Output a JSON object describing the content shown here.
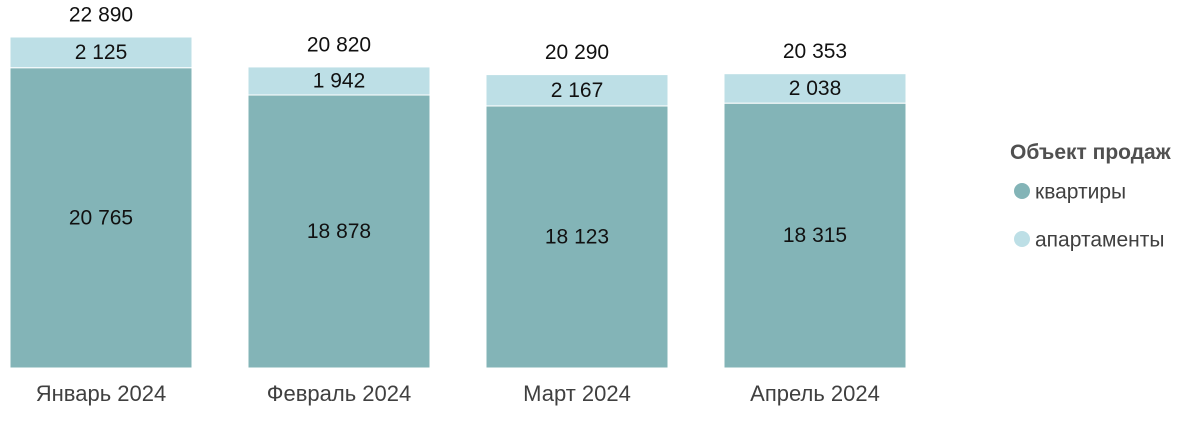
{
  "chart_data": {
    "type": "bar",
    "stacked": true,
    "categories": [
      "Январь 2024",
      "Февраль 2024",
      "Март 2024",
      "Апрель 2024"
    ],
    "series": [
      {
        "name": "квартиры",
        "values": [
          20765,
          18878,
          18123,
          18315
        ],
        "color": "#83B4B7"
      },
      {
        "name": "апартаменты",
        "values": [
          2125,
          1942,
          2167,
          2038
        ],
        "color": "#BDDFE6"
      }
    ],
    "totals": [
      22890,
      20820,
      20290,
      20353
    ],
    "value_labels": {
      "series": [
        [
          "20 765",
          "18 878",
          "18 123",
          "18 315"
        ],
        [
          "2 125",
          "1 942",
          "2 167",
          "2 038"
        ]
      ],
      "totals": [
        "22 890",
        "20 820",
        "20 290",
        "20 353"
      ]
    },
    "ylim": [
      0,
      22890
    ],
    "grid": false,
    "legend": {
      "title": "Объект продаж",
      "placement": "right"
    }
  }
}
